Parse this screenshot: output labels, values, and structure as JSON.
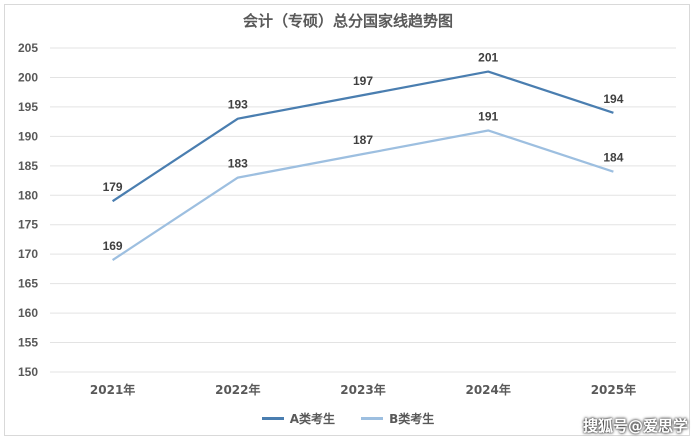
{
  "chart_data": {
    "type": "line",
    "title": "会计（专硕）总分国家线趋势图",
    "categories": [
      "2021年",
      "2022年",
      "2023年",
      "2024年",
      "2025年"
    ],
    "ylim": [
      150,
      205
    ],
    "yticks": [
      150,
      155,
      160,
      165,
      170,
      175,
      180,
      185,
      190,
      195,
      200,
      205
    ],
    "grid": true,
    "legend_position": "bottom",
    "series": [
      {
        "name": "A类考生",
        "values": [
          179,
          193,
          197,
          201,
          194
        ],
        "color": "#4a7eb0"
      },
      {
        "name": "B类考生",
        "values": [
          169,
          183,
          187,
          191,
          184
        ],
        "color": "#9dbfe0"
      }
    ]
  },
  "watermark": "搜狐号@爱思学"
}
